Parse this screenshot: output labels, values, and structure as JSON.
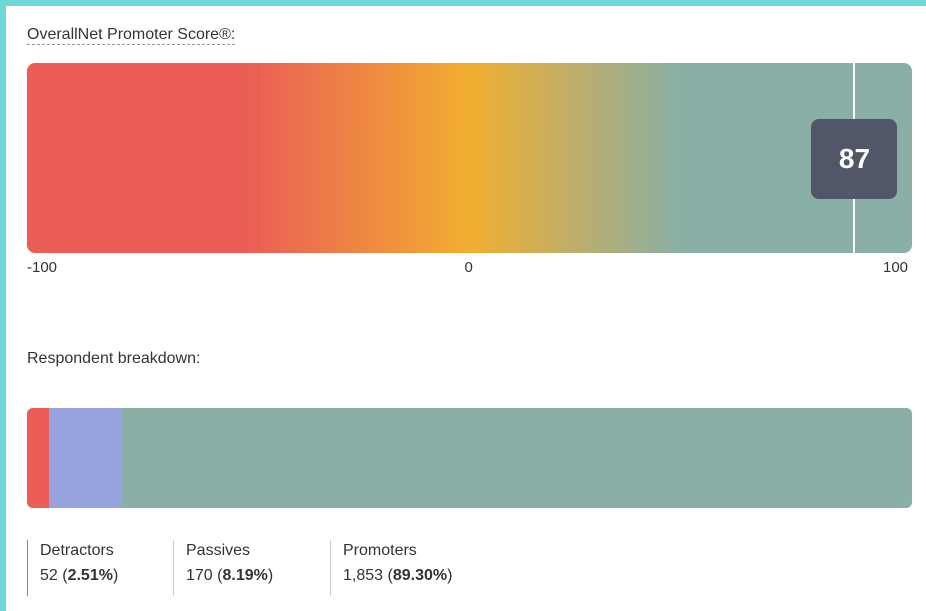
{
  "chart_data": [
    {
      "type": "bar",
      "title": "OverallNet Promoter Score®:",
      "xlim": [
        -100,
        100
      ],
      "ticks": [
        "-100",
        "0",
        "100"
      ],
      "values": [
        87
      ],
      "value_label": "87",
      "gradient_colors": [
        "#ea5e56",
        "#f2ae30",
        "#89afa6"
      ]
    },
    {
      "type": "bar",
      "title": "Respondent breakdown:",
      "categories": [
        "Detractors",
        "Passives",
        "Promoters"
      ],
      "values": [
        52,
        170,
        1853
      ],
      "percents": [
        2.51,
        8.19,
        89.3
      ],
      "count_labels": [
        "52",
        "170",
        "1,853"
      ],
      "percent_labels": [
        "2.51%",
        "8.19%",
        "89.30%"
      ],
      "colors": [
        "#ea5e56",
        "#98a4dd",
        "#89afa6"
      ]
    }
  ]
}
